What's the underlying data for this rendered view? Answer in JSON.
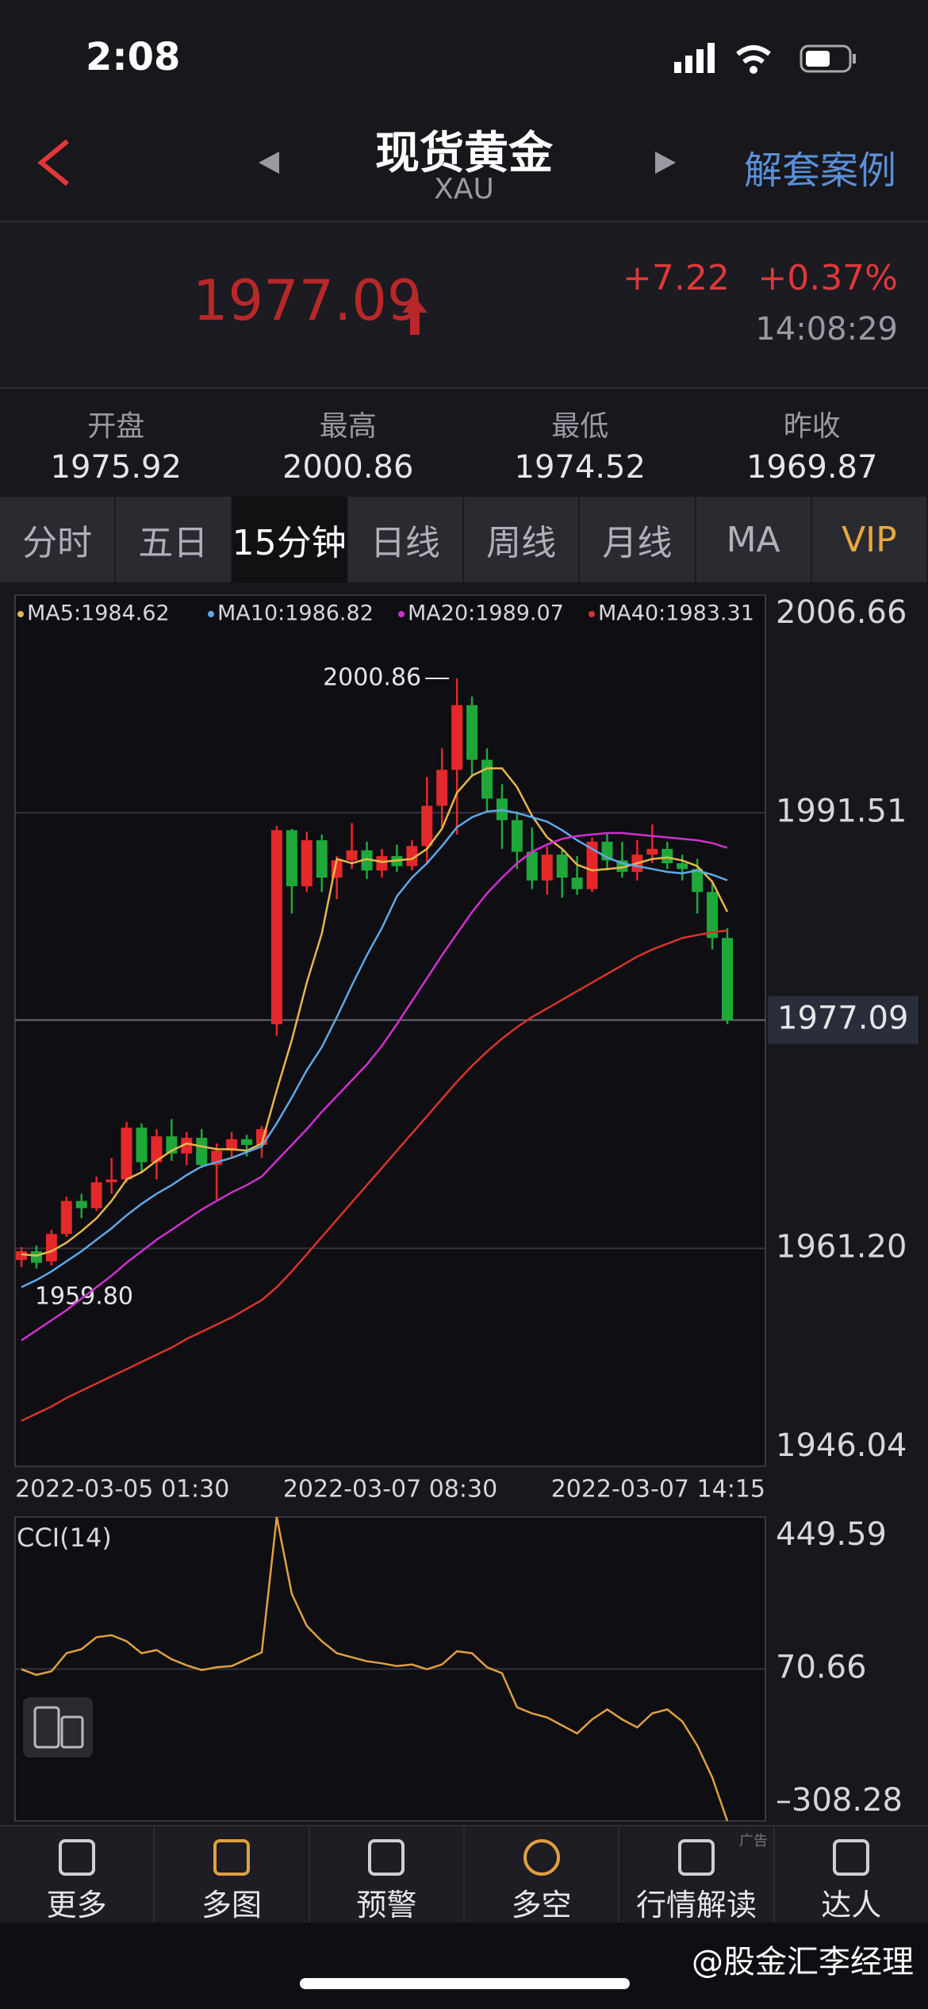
{
  "status": {
    "time": "2:08"
  },
  "header": {
    "title": "现货黄金",
    "subtitle": "XAU",
    "action": "解套案例"
  },
  "quote": {
    "price": "1977.09",
    "change": "+7.22",
    "percent": "+0.37%",
    "time": "14:08:29"
  },
  "stats": [
    {
      "label": "开盘",
      "value": "1975.92"
    },
    {
      "label": "最高",
      "value": "2000.86"
    },
    {
      "label": "最低",
      "value": "1974.52"
    },
    {
      "label": "昨收",
      "value": "1969.87"
    }
  ],
  "tabs": [
    "分时",
    "五日",
    "15分钟",
    "日线",
    "周线",
    "月线",
    "MA",
    "VIP"
  ],
  "chart_data": [
    {
      "type": "candlestick",
      "ylim": [
        1946.04,
        2006.66
      ],
      "yticks": [
        2006.66,
        1991.51,
        {
          "value": 1961.2,
          "label": "1961.20"
        },
        1946.04
      ],
      "last_price": 1977.09,
      "high_label": "2000.86",
      "low_label": "1959.80",
      "up_color": "#e5282b",
      "down_color": "#1fa83a",
      "x_labels": [
        "2022-03-05 01:30",
        "2022-03-07 08:30",
        "2022-03-07 14:15"
      ],
      "ohlc": [
        [
          1960.4,
          1961.3,
          1959.9,
          1961.0
        ],
        [
          1961.0,
          1961.4,
          1959.8,
          1960.2
        ],
        [
          1960.3,
          1962.5,
          1960.0,
          1962.2
        ],
        [
          1962.2,
          1964.8,
          1962.0,
          1964.5
        ],
        [
          1964.5,
          1965.0,
          1963.3,
          1964.0
        ],
        [
          1964.0,
          1966.2,
          1963.8,
          1965.8
        ],
        [
          1965.8,
          1967.5,
          1965.0,
          1966.0
        ],
        [
          1966.0,
          1970.0,
          1965.8,
          1969.6
        ],
        [
          1969.6,
          1969.9,
          1966.5,
          1967.2
        ],
        [
          1967.2,
          1969.5,
          1966.0,
          1969.0
        ],
        [
          1969.0,
          1970.2,
          1967.3,
          1967.8
        ],
        [
          1967.8,
          1969.3,
          1967.0,
          1968.9
        ],
        [
          1968.9,
          1969.5,
          1966.8,
          1967.0
        ],
        [
          1967.0,
          1968.5,
          1964.6,
          1968.0
        ],
        [
          1968.0,
          1969.3,
          1967.5,
          1968.8
        ],
        [
          1968.8,
          1969.1,
          1967.6,
          1968.4
        ],
        [
          1968.4,
          1969.7,
          1967.5,
          1969.5
        ],
        [
          1976.8,
          1990.6,
          1976.0,
          1990.3
        ],
        [
          1990.3,
          1990.4,
          1984.5,
          1986.4
        ],
        [
          1986.4,
          1990.2,
          1986.0,
          1989.6
        ],
        [
          1989.6,
          1990.0,
          1986.0,
          1987.0
        ],
        [
          1987.0,
          1988.5,
          1985.5,
          1988.2
        ],
        [
          1988.2,
          1990.8,
          1987.6,
          1988.9
        ],
        [
          1988.9,
          1989.5,
          1986.9,
          1987.5
        ],
        [
          1987.5,
          1989.0,
          1987.0,
          1988.5
        ],
        [
          1988.5,
          1989.3,
          1987.4,
          1987.8
        ],
        [
          1987.8,
          1989.6,
          1987.5,
          1989.2
        ],
        [
          1989.2,
          1994.0,
          1988.0,
          1992.0
        ],
        [
          1992.0,
          1996.0,
          1990.5,
          1994.5
        ],
        [
          1994.5,
          2000.86,
          1990.0,
          1999.0
        ],
        [
          1999.0,
          1999.6,
          1994.0,
          1995.2
        ],
        [
          1995.2,
          1996.0,
          1991.5,
          1992.5
        ],
        [
          1992.5,
          1993.5,
          1989.0,
          1991.0
        ],
        [
          1991.0,
          1991.6,
          1987.6,
          1988.8
        ],
        [
          1988.8,
          1990.5,
          1986.2,
          1986.8
        ],
        [
          1986.8,
          1989.2,
          1985.8,
          1988.6
        ],
        [
          1988.6,
          1989.0,
          1985.6,
          1987.0
        ],
        [
          1987.0,
          1988.5,
          1985.8,
          1986.2
        ],
        [
          1986.2,
          1989.8,
          1986.0,
          1989.5
        ],
        [
          1989.5,
          1990.1,
          1987.5,
          1988.2
        ],
        [
          1988.2,
          1989.5,
          1987.0,
          1987.4
        ],
        [
          1987.4,
          1989.6,
          1986.8,
          1988.6
        ],
        [
          1988.6,
          1990.7,
          1988.0,
          1989.0
        ],
        [
          1989.0,
          1989.5,
          1987.6,
          1988.0
        ],
        [
          1988.0,
          1988.6,
          1986.8,
          1987.6
        ],
        [
          1987.6,
          1988.3,
          1984.5,
          1986.0
        ],
        [
          1986.0,
          1986.8,
          1982.0,
          1982.8
        ],
        [
          1982.8,
          1983.5,
          1976.8,
          1977.09
        ]
      ],
      "series": [
        {
          "name": "MA5:1984.62",
          "color": "#e8b64c",
          "values": [
            1960.8,
            1960.7,
            1961.0,
            1961.6,
            1962.4,
            1963.3,
            1964.5,
            1966.0,
            1966.5,
            1967.3,
            1968.0,
            1968.5,
            1968.3,
            1968.1,
            1968.1,
            1968.0,
            1968.5,
            1972.2,
            1975.7,
            1979.7,
            1983.1,
            1988.3,
            1988.0,
            1988.3,
            1988.1,
            1988.2,
            1988.3,
            1989.0,
            1990.4,
            1992.9,
            1994.1,
            1994.6,
            1994.6,
            1993.3,
            1991.3,
            1989.8,
            1989.0,
            1987.9,
            1987.5,
            1987.6,
            1987.7,
            1988.0,
            1988.3,
            1988.4,
            1988.2,
            1987.8,
            1986.7,
            1984.62
          ]
        },
        {
          "name": "MA10:1986.82",
          "color": "#5fa8e8",
          "values": [
            1958.5,
            1959.0,
            1959.6,
            1960.3,
            1961.0,
            1961.8,
            1962.6,
            1963.5,
            1964.3,
            1965.0,
            1965.6,
            1966.3,
            1966.9,
            1967.2,
            1967.5,
            1967.9,
            1968.3,
            1969.9,
            1971.7,
            1973.6,
            1975.2,
            1977.3,
            1979.5,
            1981.6,
            1983.5,
            1985.7,
            1987.0,
            1988.0,
            1989.2,
            1990.5,
            1991.2,
            1991.6,
            1991.7,
            1991.5,
            1991.2,
            1990.9,
            1990.3,
            1989.6,
            1989.0,
            1988.4,
            1988.0,
            1987.8,
            1987.6,
            1987.4,
            1987.3,
            1987.5,
            1987.2,
            1986.82
          ]
        },
        {
          "name": "MA20:1989.07",
          "color": "#d030d0",
          "values": [
            1954.8,
            1955.5,
            1956.2,
            1956.9,
            1957.7,
            1958.5,
            1959.3,
            1960.2,
            1961.0,
            1961.8,
            1962.5,
            1963.2,
            1963.9,
            1964.5,
            1965.1,
            1965.6,
            1966.2,
            1967.3,
            1968.4,
            1969.5,
            1970.7,
            1971.8,
            1972.9,
            1974.0,
            1975.3,
            1976.8,
            1978.4,
            1980.0,
            1981.6,
            1983.1,
            1984.6,
            1985.9,
            1987.0,
            1988.0,
            1988.8,
            1989.3,
            1989.7,
            1989.9,
            1990.0,
            1990.1,
            1990.1,
            1990.0,
            1989.9,
            1989.8,
            1989.7,
            1989.6,
            1989.4,
            1989.07
          ]
        },
        {
          "name": "MA40:1983.31",
          "color": "#d8342c",
          "values": [
            1949.2,
            1949.7,
            1950.2,
            1950.8,
            1951.3,
            1951.8,
            1952.3,
            1952.8,
            1953.3,
            1953.8,
            1954.3,
            1954.9,
            1955.4,
            1955.9,
            1956.4,
            1957.0,
            1957.6,
            1958.5,
            1959.6,
            1960.8,
            1962.0,
            1963.2,
            1964.4,
            1965.6,
            1966.8,
            1968.0,
            1969.2,
            1970.4,
            1971.6,
            1972.8,
            1973.9,
            1974.9,
            1975.8,
            1976.6,
            1977.3,
            1977.9,
            1978.5,
            1979.1,
            1979.7,
            1980.3,
            1980.9,
            1981.5,
            1982.0,
            1982.4,
            1982.8,
            1983.0,
            1983.2,
            1983.31
          ]
        }
      ]
    },
    {
      "type": "line",
      "title": "CCI(14)",
      "ylim": [
        -308.28,
        449.59
      ],
      "yticks": [
        449.59,
        70.66,
        {
          "value": -308.28,
          "label": "–308.28"
        }
      ],
      "series": [
        {
          "color": "#e0a040",
          "values": [
            70,
            56,
            65,
            110,
            120,
            150,
            155,
            140,
            110,
            118,
            95,
            80,
            68,
            75,
            78,
            95,
            112,
            449.59,
            258,
            178,
            140,
            110,
            100,
            90,
            85,
            78,
            82,
            70,
            82,
            115,
            110,
            75,
            60,
            -25,
            -40,
            -50,
            -70,
            -90,
            -55,
            -30,
            -55,
            -75,
            -40,
            -30,
            -60,
            -120,
            -200,
            -308.28
          ]
        }
      ]
    }
  ],
  "nav": {
    "items": [
      "更多",
      "多图",
      "预警",
      "多空",
      "行情解读",
      "达人"
    ],
    "ad": "广告"
  },
  "watermark": "@股金汇李经理"
}
